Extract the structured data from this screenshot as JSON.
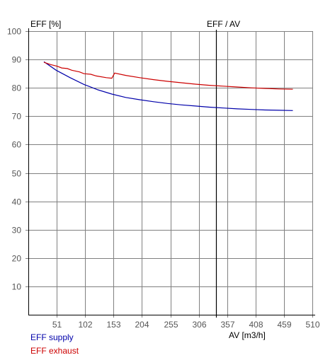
{
  "chart_data": {
    "type": "line",
    "title": "EFF / AV",
    "ylabel": "EFF [%]",
    "xlabel": "AV [m3/h]",
    "xlim": [
      0,
      510
    ],
    "ylim": [
      0,
      100
    ],
    "xticks": [
      51,
      102,
      153,
      204,
      255,
      306,
      357,
      408,
      459,
      510
    ],
    "yticks": [
      10,
      20,
      30,
      40,
      50,
      60,
      70,
      80,
      90,
      100
    ],
    "x_marker": 337,
    "grid": true,
    "legend_position": "bottom-left",
    "series": [
      {
        "name": "EFF supply",
        "color": "#0000aa",
        "points": [
          [
            28,
            89.2
          ],
          [
            50,
            86.2
          ],
          [
            75,
            83.6
          ],
          [
            100,
            81.2
          ],
          [
            125,
            79.3
          ],
          [
            150,
            77.8
          ],
          [
            175,
            76.6
          ],
          [
            200,
            75.8
          ],
          [
            225,
            75.1
          ],
          [
            250,
            74.5
          ],
          [
            275,
            74.0
          ],
          [
            300,
            73.6
          ],
          [
            325,
            73.2
          ],
          [
            350,
            72.9
          ],
          [
            375,
            72.6
          ],
          [
            400,
            72.4
          ],
          [
            425,
            72.2
          ],
          [
            450,
            72.1
          ],
          [
            475,
            72.0
          ]
        ]
      },
      {
        "name": "EFF exhaust",
        "color": "#cc0000",
        "points": [
          [
            28,
            89.0
          ],
          [
            40,
            88.2
          ],
          [
            52,
            87.6
          ],
          [
            60,
            87.0
          ],
          [
            70,
            86.8
          ],
          [
            78,
            86.2
          ],
          [
            92,
            85.6
          ],
          [
            100,
            85.0
          ],
          [
            112,
            84.8
          ],
          [
            122,
            84.2
          ],
          [
            140,
            83.6
          ],
          [
            150,
            83.4
          ],
          [
            155,
            85.2
          ],
          [
            175,
            84.4
          ],
          [
            200,
            83.6
          ],
          [
            225,
            82.9
          ],
          [
            250,
            82.3
          ],
          [
            275,
            81.8
          ],
          [
            300,
            81.3
          ],
          [
            325,
            80.9
          ],
          [
            350,
            80.6
          ],
          [
            375,
            80.3
          ],
          [
            400,
            80.0
          ],
          [
            425,
            79.8
          ],
          [
            450,
            79.6
          ],
          [
            475,
            79.5
          ]
        ]
      }
    ]
  }
}
